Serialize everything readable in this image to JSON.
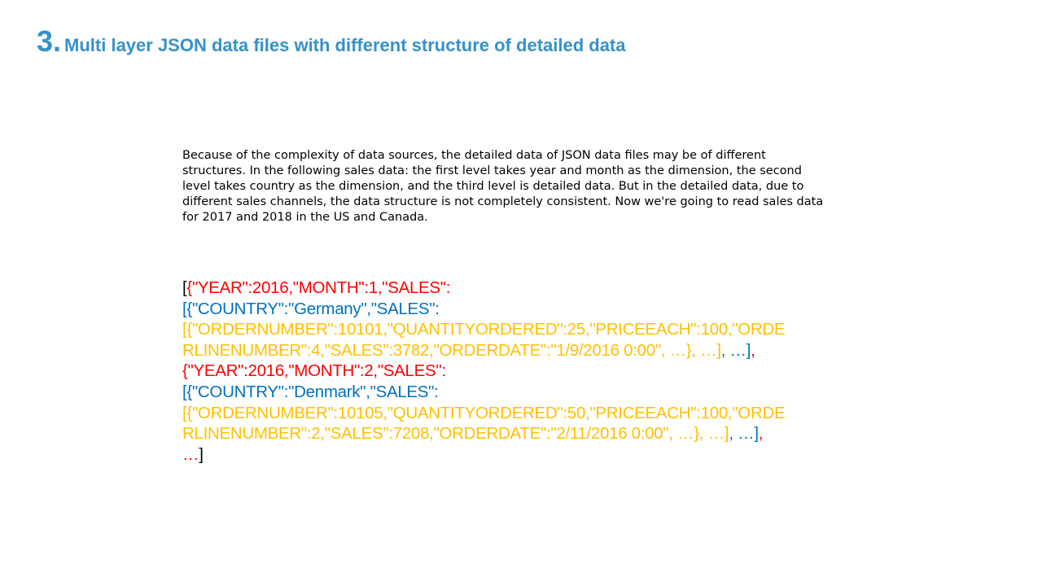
{
  "colors": {
    "title": "#3592c8",
    "black": "#000000",
    "red": "#ff0000",
    "blue": "#0070c0",
    "yellow": "#ffc000"
  },
  "title": {
    "number": "3.",
    "text": "Multi layer JSON data files with different structure of detailed data"
  },
  "paragraph": "Because of the complexity of data sources, the detailed data of JSON data files may be of different structures. In the following sales data: the first level takes year and month as the dimension, the second level takes country as the dimension, and the third level is detailed data. But in the detailed data, due to different sales channels, the data structure is not completely consistent. Now we're going to read sales data for 2017 and 2018 in the US and Canada.",
  "code_lines": [
    [
      {
        "t": "[",
        "c": "black"
      },
      {
        "t": "{\"YEAR\":2016,\"MONTH\":1,\"SALES\":",
        "c": "red"
      }
    ],
    [
      {
        "t": "[{\"COUNTRY\":\"Germany\",\"SALES\":",
        "c": "blue"
      }
    ],
    [
      {
        "t": "[{\"ORDERNUMBER\":10101,\"QUANTITYORDERED\":25,\"PRICEEACH\":100,\"ORDE",
        "c": "yellow"
      }
    ],
    [
      {
        "t": "RLINENUMBER\":4,\"SALES\":3782,\"ORDERDATE\":\"1/9/2016  0:00\",  …}, …]",
        "c": "yellow"
      },
      {
        "t": ", …]",
        "c": "blue"
      },
      {
        "t": ",",
        "c": "red"
      }
    ],
    [
      {
        "t": "{\"YEAR\":2016,\"MONTH\":2,\"SALES\":",
        "c": "red"
      }
    ],
    [
      {
        "t": "[{\"COUNTRY\":\"Denmark\",\"SALES\":",
        "c": "blue"
      }
    ],
    [
      {
        "t": "[{\"ORDERNUMBER\":10105,\"QUANTITYORDERED\":50,\"PRICEEACH\":100,\"ORDE",
        "c": "yellow"
      }
    ],
    [
      {
        "t": "RLINENUMBER\":2,\"SALES\":7208,\"ORDERDATE\":\"2/11/2016  0:00\",  …}, …]",
        "c": "yellow"
      },
      {
        "t": ", …]",
        "c": "blue"
      },
      {
        "t": ",",
        "c": "red"
      }
    ],
    [
      {
        "t": "…",
        "c": "red"
      },
      {
        "t": "]",
        "c": "black"
      }
    ]
  ]
}
